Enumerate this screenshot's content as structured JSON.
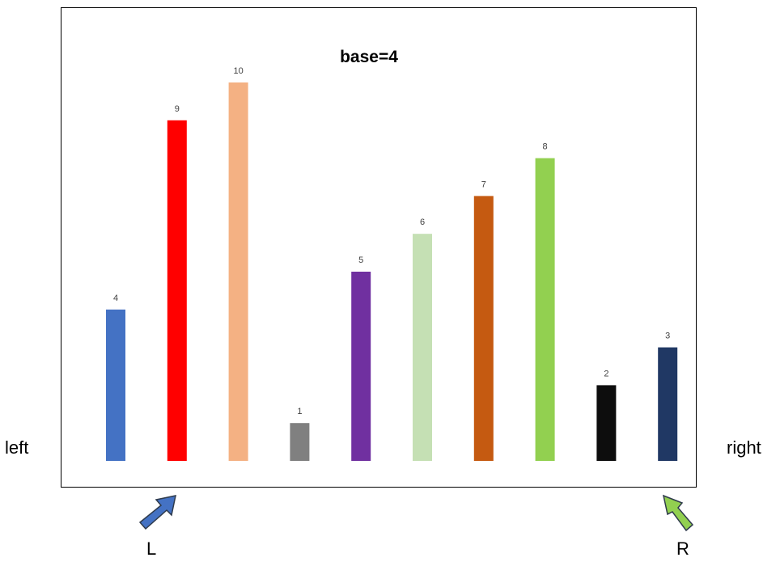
{
  "title": "base=4",
  "left_label": "left",
  "right_label": "right",
  "pointers": {
    "left": {
      "label": "L",
      "color": "#4472c4",
      "at_index": 1
    },
    "right": {
      "label": "R",
      "color": "#92d050",
      "at_index": 9
    }
  },
  "chart_data": {
    "type": "bar",
    "values": [
      4,
      9,
      10,
      1,
      5,
      6,
      7,
      8,
      2,
      3
    ],
    "colors": [
      "#4472c4",
      "#ff0000",
      "#f4b183",
      "#808080",
      "#7030a0",
      "#c5e0b4",
      "#c55a11",
      "#92d050",
      "#0d0d0d",
      "#203864"
    ],
    "ylim": [
      0,
      10
    ]
  }
}
